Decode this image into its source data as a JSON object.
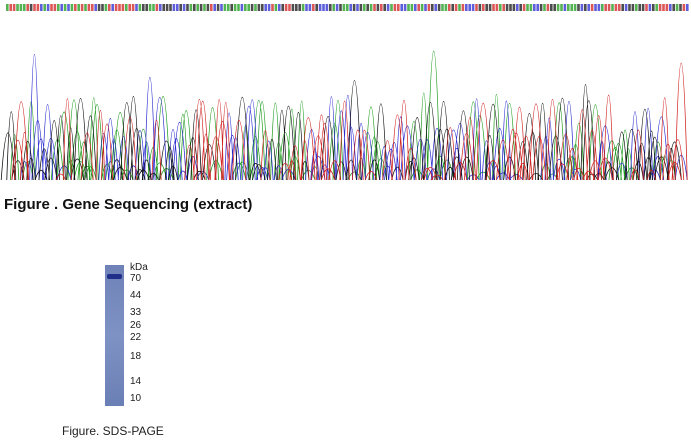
{
  "sequencing": {
    "caption": "Figure . Gene Sequencing (extract)"
  },
  "sds_page": {
    "unit": "kDa",
    "markers": [
      "70",
      "44",
      "33",
      "26",
      "22",
      "18",
      "14",
      "10"
    ],
    "caption": "Figure. SDS-PAGE"
  }
}
